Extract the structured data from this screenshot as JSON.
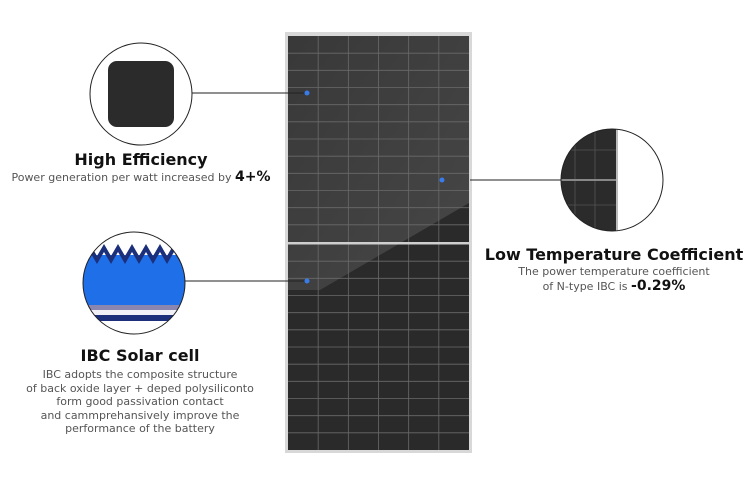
{
  "features": [
    {
      "title": "High Efficiency",
      "description": "Power generation per watt increased by",
      "highlight": "4+%"
    },
    {
      "title": "IBC Solar cell",
      "description_lines": [
        "IBC adopts the composite structure",
        "of back oxide layer + deped polysiliconto",
        "form good passivation contact",
        "and cammprehansively improve the",
        "performance of the battery"
      ]
    },
    {
      "title": "Low Temperature Coefficient",
      "description_lines": [
        "The power temperature coefficient",
        "of N-type IBC is"
      ],
      "highlight": "-0.29%"
    }
  ],
  "colors": {
    "marker": "#3a7bea",
    "cell_blue": "#1f6fe8",
    "panel": "#333333"
  }
}
